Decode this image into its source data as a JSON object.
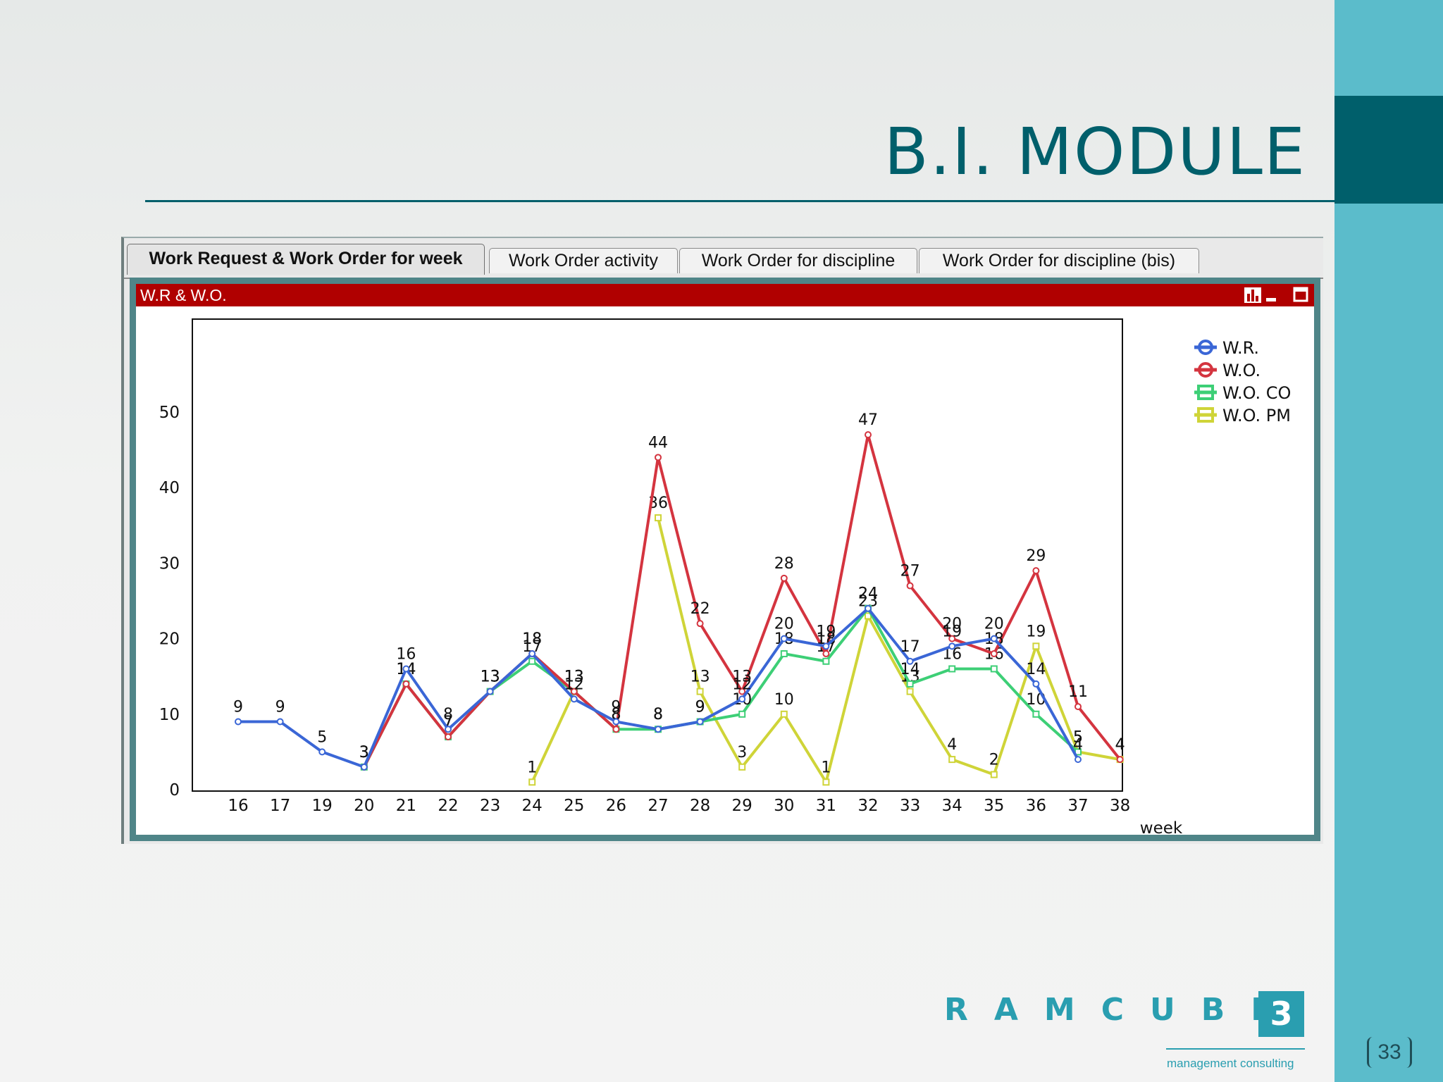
{
  "slide": {
    "title": "B.I. MODULE",
    "page_number": "33",
    "brand": "RAMCUBE",
    "brand_number": "3",
    "brand_subtitle": "management consulting"
  },
  "tabs": [
    {
      "label": "Work Request & Work Order for week",
      "active": true
    },
    {
      "label": "Work Order activity",
      "active": false
    },
    {
      "label": "Work Order for discipline",
      "active": false
    },
    {
      "label": "Work Order for discipline (bis)",
      "active": false
    }
  ],
  "chart_header": {
    "title": "W.R & W.O."
  },
  "colors": {
    "accent": "#005f6b",
    "sidebar": "#5bbccb",
    "header_red": "#b00000",
    "frame": "#4f8588"
  },
  "chart_data": {
    "type": "line",
    "title": "",
    "xlabel": "week",
    "ylabel": "",
    "categories": [
      "16",
      "17",
      "19",
      "20",
      "21",
      "22",
      "23",
      "24",
      "25",
      "26",
      "27",
      "28",
      "29",
      "30",
      "31",
      "32",
      "33",
      "34",
      "35",
      "36",
      "37",
      "38"
    ],
    "ylim": [
      0,
      60
    ],
    "yticks": [
      0,
      10,
      20,
      30,
      40,
      50
    ],
    "grid": false,
    "legend": "right",
    "series": [
      {
        "name": "W.R.",
        "color": "#3a66d6",
        "marker": "circle",
        "values": [
          9,
          9,
          5,
          3,
          16,
          8,
          13,
          18,
          12,
          9,
          8,
          9,
          12,
          20,
          19,
          24,
          17,
          19,
          20,
          14,
          4,
          null
        ]
      },
      {
        "name": "W.O.",
        "color": "#d4343f",
        "marker": "circle",
        "values": [
          null,
          null,
          null,
          3,
          14,
          7,
          13,
          18,
          13,
          8,
          44,
          22,
          13,
          28,
          18,
          47,
          27,
          20,
          18,
          29,
          11,
          4
        ]
      },
      {
        "name": "W.O. CO",
        "color": "#3dcf76",
        "marker": "square",
        "values": [
          null,
          null,
          null,
          3,
          14,
          7,
          13,
          17,
          13,
          8,
          8,
          9,
          10,
          18,
          17,
          24,
          14,
          16,
          16,
          10,
          5,
          null
        ]
      },
      {
        "name": "W.O. PM",
        "color": "#cfd438",
        "marker": "square",
        "values": [
          null,
          null,
          null,
          null,
          null,
          null,
          null,
          1,
          13,
          null,
          36,
          13,
          3,
          10,
          1,
          23,
          13,
          4,
          2,
          19,
          5,
          4
        ]
      }
    ]
  }
}
